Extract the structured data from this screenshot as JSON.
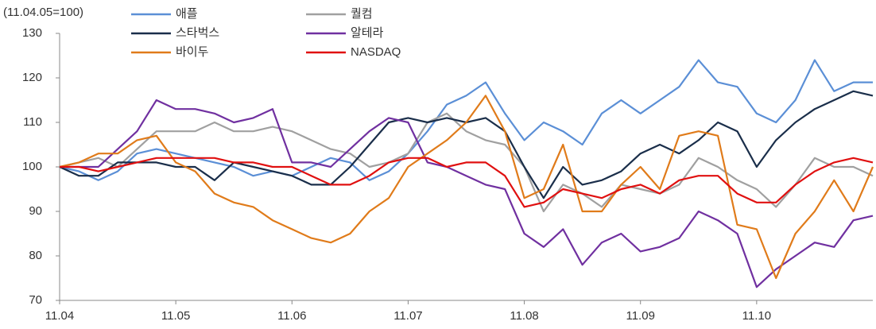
{
  "chart_data": {
    "type": "line",
    "subtitle": "(11.04.05=100)",
    "categories": [
      "11.04",
      null,
      null,
      null,
      null,
      null,
      "11.05",
      null,
      null,
      null,
      null,
      null,
      "11.06",
      null,
      null,
      null,
      null,
      null,
      "11.07",
      null,
      null,
      null,
      null,
      null,
      "11.08",
      null,
      null,
      null,
      null,
      null,
      "11.09",
      null,
      null,
      null,
      null,
      null,
      "11.10",
      null,
      null,
      null,
      null,
      null,
      null
    ],
    "ylim": [
      70,
      130
    ],
    "yticks": [
      70,
      80,
      90,
      100,
      110,
      120,
      130
    ],
    "grid": false,
    "series": [
      {
        "name": "애플",
        "color": "#5b8fd6",
        "values": [
          100,
          99,
          97,
          99,
          103,
          104,
          103,
          102,
          101,
          100,
          98,
          99,
          98,
          100,
          102,
          101,
          97,
          99,
          103,
          108,
          114,
          116,
          119,
          112,
          106,
          110,
          108,
          105,
          112,
          115,
          112,
          115,
          118,
          124,
          119,
          118,
          112,
          110,
          115,
          124,
          117,
          119,
          119
        ]
      },
      {
        "name": "퀄컴",
        "color": "#a0a0a0",
        "values": [
          100,
          101,
          102,
          100,
          104,
          108,
          108,
          108,
          110,
          108,
          108,
          109,
          108,
          106,
          104,
          103,
          100,
          101,
          103,
          110,
          112,
          108,
          106,
          105,
          100,
          90,
          96,
          94,
          91,
          96,
          95,
          94,
          96,
          102,
          100,
          97,
          95,
          91,
          96,
          102,
          100,
          100,
          98
        ]
      },
      {
        "name": "스타벅스",
        "color": "#1a2e4a",
        "values": [
          100,
          98,
          98,
          101,
          101,
          101,
          100,
          100,
          97,
          101,
          100,
          99,
          98,
          96,
          96,
          100,
          105,
          110,
          111,
          110,
          111,
          110,
          111,
          108,
          100,
          93,
          100,
          96,
          97,
          99,
          103,
          105,
          103,
          106,
          110,
          108,
          100,
          106,
          110,
          113,
          115,
          117,
          116
        ]
      },
      {
        "name": "알테라",
        "color": "#7030a0",
        "values": [
          100,
          100,
          100,
          104,
          108,
          115,
          113,
          113,
          112,
          110,
          111,
          113,
          101,
          101,
          100,
          104,
          108,
          111,
          110,
          101,
          100,
          98,
          96,
          95,
          85,
          82,
          86,
          78,
          83,
          85,
          81,
          82,
          84,
          90,
          88,
          85,
          73,
          77,
          80,
          83,
          82,
          88,
          89
        ]
      },
      {
        "name": "바이두",
        "color": "#e07b1a",
        "values": [
          100,
          101,
          103,
          103,
          106,
          107,
          101,
          99,
          94,
          92,
          91,
          88,
          86,
          84,
          83,
          85,
          90,
          93,
          100,
          103,
          106,
          110,
          116,
          108,
          93,
          95,
          105,
          90,
          90,
          96,
          100,
          95,
          107,
          108,
          107,
          87,
          86,
          75,
          85,
          90,
          97,
          90,
          100
        ]
      },
      {
        "name": "NASDAQ",
        "color": "#e01010",
        "values": [
          100,
          100,
          99,
          100,
          101,
          102,
          102,
          102,
          102,
          101,
          101,
          100,
          100,
          98,
          96,
          96,
          98,
          101,
          102,
          102,
          100,
          101,
          101,
          98,
          91,
          92,
          95,
          94,
          93,
          95,
          96,
          94,
          97,
          98,
          98,
          94,
          92,
          92,
          96,
          99,
          101,
          102,
          101
        ]
      }
    ]
  }
}
